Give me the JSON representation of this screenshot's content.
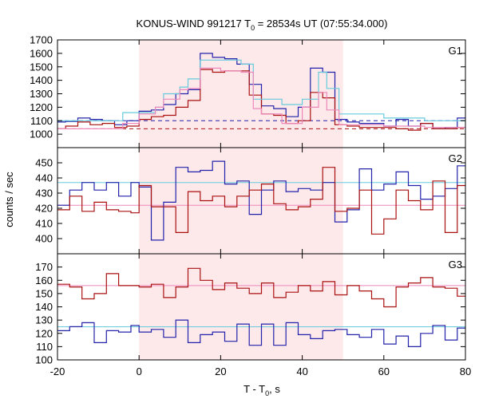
{
  "chart_data": {
    "type": "line",
    "title_main": "KONUS-WIND 991217 T",
    "title_sub": "0",
    "title_rest": " = 28534s UT (07:55:34.000)",
    "xlabel_main": "T - T",
    "xlabel_sub": "0",
    "xlabel_rest": ", s",
    "ylabel": "counts / sec",
    "xlim": [
      -20,
      80
    ],
    "x_ticks": [
      -20,
      0,
      20,
      40,
      60,
      80
    ],
    "shaded_interval": [
      0,
      50
    ],
    "colors": {
      "shade": "#fde8ea",
      "blue": "#2222aa",
      "red": "#aa1111",
      "cyan": "#66ccdd",
      "pink": "#ee88bb"
    },
    "panels": [
      {
        "name": "G1",
        "ylim": [
          900,
          1700
        ],
        "y_ticks": [
          900,
          1000,
          1100,
          1200,
          1300,
          1400,
          1500,
          1600,
          1700
        ],
        "background_lines": [
          {
            "series": "blue",
            "value": 1100
          },
          {
            "series": "red",
            "value": 1040
          }
        ],
        "series": [
          {
            "color_key": "blue",
            "style": "step",
            "x": [
              -20,
              -18,
              -15,
              -12,
              -9,
              -6,
              -3,
              0,
              3,
              6,
              9,
              12,
              15,
              18,
              21,
              24,
              27,
              30,
              33,
              36,
              39,
              42,
              45,
              48,
              51,
              54,
              57,
              60,
              63,
              66,
              69,
              72,
              75,
              78,
              81
            ],
            "values": [
              1090,
              1095,
              1120,
              1110,
              1100,
              1070,
              1100,
              1170,
              1180,
              1220,
              1300,
              1330,
              1600,
              1570,
              1560,
              1520,
              1370,
              1210,
              1190,
              1130,
              1200,
              1490,
              1460,
              1110,
              1090,
              1080,
              1080,
              1060,
              1110,
              1060,
              1080,
              1040,
              1050,
              1120,
              1120
            ]
          },
          {
            "color_key": "red",
            "style": "step",
            "x": [
              -20,
              -18,
              -15,
              -12,
              -9,
              -6,
              -3,
              0,
              3,
              6,
              9,
              12,
              15,
              18,
              21,
              24,
              27,
              30,
              33,
              36,
              39,
              42,
              45,
              48,
              51,
              54,
              57,
              60,
              63,
              66,
              69,
              72,
              75,
              78,
              81
            ],
            "values": [
              1040,
              1060,
              1090,
              1070,
              1080,
              1050,
              1060,
              1110,
              1130,
              1140,
              1200,
              1250,
              1480,
              1460,
              1470,
              1470,
              1290,
              1150,
              1140,
              1080,
              1100,
              1310,
              1270,
              1070,
              1060,
              1050,
              1050,
              1050,
              1040,
              1030,
              1080,
              1040,
              1040,
              1050,
              1050
            ]
          },
          {
            "color_key": "cyan",
            "style": "step",
            "x": [
              -20,
              -4,
              0,
              4,
              6,
              10,
              12,
              15,
              20,
              25,
              28,
              30,
              35,
              40,
              44,
              46,
              49,
              60,
              70,
              80
            ],
            "values": [
              1100,
              1160,
              1160,
              1200,
              1300,
              1350,
              1410,
              1550,
              1550,
              1520,
              1260,
              1260,
              1220,
              1260,
              1460,
              1340,
              1150,
              1120,
              1100,
              1100
            ]
          },
          {
            "color_key": "pink",
            "style": "step",
            "x": [
              -20,
              -4,
              0,
              4,
              6,
              10,
              12,
              15,
              20,
              25,
              28,
              30,
              35,
              40,
              44,
              46,
              49,
              60,
              70,
              80
            ],
            "values": [
              1040,
              1080,
              1150,
              1200,
              1260,
              1330,
              1340,
              1490,
              1470,
              1460,
              1190,
              1150,
              1080,
              1200,
              1310,
              1180,
              1070,
              1060,
              1050,
              1050
            ]
          }
        ]
      },
      {
        "name": "G2",
        "ylim": [
          390,
          460
        ],
        "y_ticks": [
          390,
          400,
          410,
          420,
          430,
          440,
          450
        ],
        "background_lines": [
          {
            "series": "cyan",
            "value": 437
          },
          {
            "series": "pink",
            "value": 422
          }
        ],
        "series": [
          {
            "color_key": "blue",
            "style": "step",
            "x": [
              -20,
              -17,
              -14,
              -11,
              -8,
              -5,
              -2,
              0,
              3,
              6,
              9,
              12,
              15,
              18,
              21,
              24,
              27,
              30,
              33,
              36,
              39,
              42,
              45,
              48,
              51,
              54,
              57,
              60,
              63,
              66,
              69,
              72,
              75,
              78,
              81
            ],
            "values": [
              422,
              432,
              437,
              432,
              437,
              428,
              437,
              434,
              399,
              424,
              447,
              444,
              445,
              451,
              436,
              438,
              416,
              432,
              438,
              431,
              433,
              432,
              437,
              411,
              419,
              446,
              432,
              436,
              444,
              435,
              426,
              428,
              433,
              448,
              452
            ]
          },
          {
            "color_key": "red",
            "style": "step",
            "x": [
              -20,
              -17,
              -14,
              -11,
              -8,
              -5,
              -2,
              0,
              3,
              6,
              9,
              12,
              15,
              18,
              21,
              24,
              27,
              30,
              33,
              36,
              39,
              42,
              45,
              48,
              51,
              54,
              57,
              60,
              63,
              66,
              69,
              72,
              75,
              78,
              81
            ],
            "values": [
              419,
              428,
              418,
              424,
              419,
              418,
              417,
              435,
              421,
              421,
              404,
              431,
              425,
              428,
              421,
              428,
              432,
              436,
              423,
              419,
              421,
              426,
              447,
              418,
              420,
              432,
              403,
              413,
              432,
              425,
              419,
              438,
              404,
              435,
              438
            ]
          }
        ]
      },
      {
        "name": "G3",
        "ylim": [
          100,
          180
        ],
        "y_ticks": [
          100,
          110,
          120,
          130,
          140,
          150,
          160,
          170
        ],
        "background_lines": [
          {
            "series": "cyan",
            "value": 125
          },
          {
            "series": "pink",
            "value": 156
          }
        ],
        "series": [
          {
            "color_key": "blue",
            "style": "step",
            "x": [
              -20,
              -17,
              -14,
              -11,
              -8,
              -5,
              -2,
              0,
              3,
              6,
              9,
              12,
              15,
              18,
              21,
              24,
              27,
              30,
              33,
              36,
              39,
              42,
              45,
              48,
              51,
              54,
              57,
              60,
              63,
              66,
              69,
              72,
              75,
              78,
              81
            ],
            "values": [
              122,
              125,
              128,
              113,
              122,
              121,
              126,
              121,
              123,
              117,
              130,
              113,
              119,
              121,
              114,
              127,
              111,
              127,
              111,
              128,
              119,
              116,
              122,
              123,
              119,
              117,
              123,
              112,
              118,
              110,
              120,
              126,
              115,
              124,
              120
            ]
          },
          {
            "color_key": "red",
            "style": "step",
            "x": [
              -20,
              -17,
              -14,
              -11,
              -8,
              -5,
              -2,
              0,
              3,
              6,
              9,
              12,
              15,
              18,
              21,
              24,
              27,
              30,
              33,
              36,
              39,
              42,
              45,
              48,
              51,
              54,
              57,
              60,
              63,
              66,
              69,
              72,
              75,
              78,
              81
            ],
            "values": [
              157,
              155,
              146,
              150,
              165,
              156,
              156,
              155,
              157,
              147,
              155,
              169,
              160,
              153,
              158,
              154,
              150,
              158,
              147,
              151,
              156,
              152,
              159,
              149,
              156,
              152,
              146,
              140,
              155,
              158,
              162,
              155,
              154,
              148,
              160
            ]
          }
        ]
      }
    ]
  }
}
